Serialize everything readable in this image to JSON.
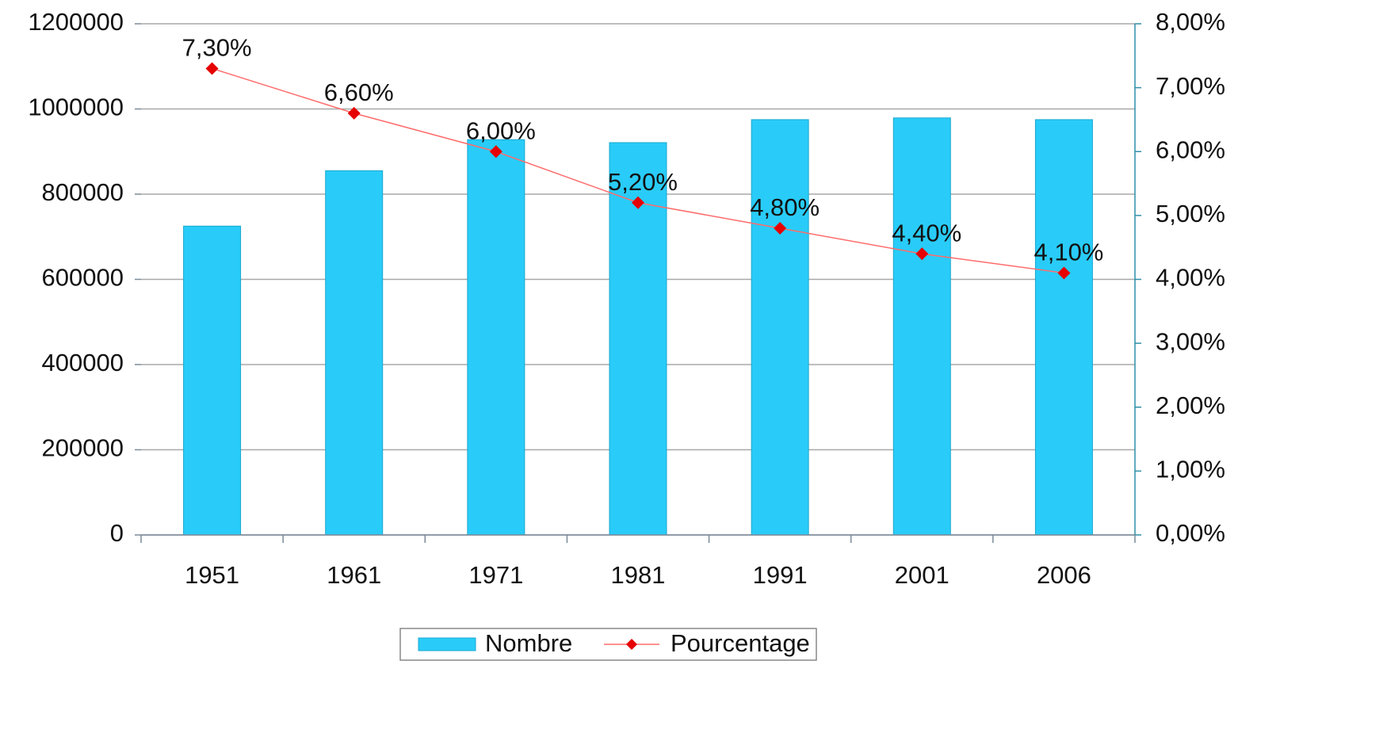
{
  "chart_data": {
    "type": "bar",
    "categories": [
      "1951",
      "1961",
      "1971",
      "1981",
      "1991",
      "2001",
      "2006"
    ],
    "series": [
      {
        "name": "Nombre",
        "color": "#29ccf8",
        "values": [
          725000,
          855000,
          928000,
          921000,
          975000,
          979000,
          975000
        ]
      },
      {
        "name": "Pourcentage",
        "type": "line",
        "axis": "y2",
        "color": "#e60000",
        "line_color": "#ff6b6b",
        "values": [
          7.3,
          6.6,
          6.0,
          5.2,
          4.8,
          4.4,
          4.1
        ],
        "value_labels": [
          "7,30%",
          "6,60%",
          "6,00%",
          "5,20%",
          "4,80%",
          "4,40%",
          "4,10%"
        ]
      }
    ],
    "ylim": [
      0,
      1200000
    ],
    "yticks": [
      0,
      200000,
      400000,
      600000,
      800000,
      1000000,
      1200000
    ],
    "y2lim": [
      0,
      8
    ],
    "y2ticks": [
      {
        "value": 0,
        "label": "0,00%"
      },
      {
        "value": 1,
        "label": "1,00%"
      },
      {
        "value": 2,
        "label": "2,00%"
      },
      {
        "value": 3,
        "label": "3,00%"
      },
      {
        "value": 4,
        "label": "4,00%"
      },
      {
        "value": 5,
        "label": "5,00%"
      },
      {
        "value": 6,
        "label": "6,00%"
      },
      {
        "value": 7,
        "label": "7,00%"
      },
      {
        "value": 8,
        "label": "8,00%"
      }
    ],
    "grid": true,
    "legend": "bottom"
  }
}
